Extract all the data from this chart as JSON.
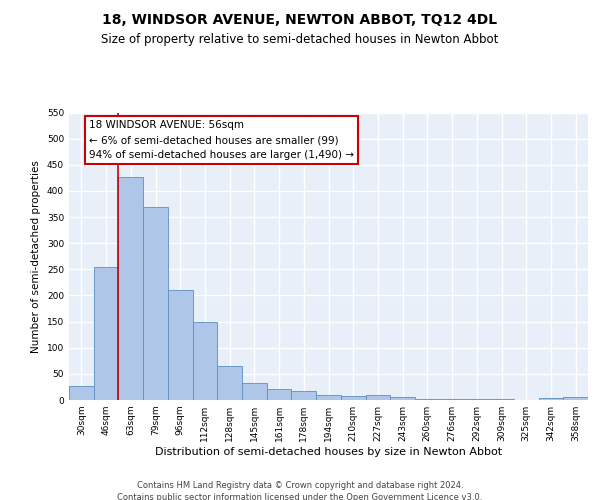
{
  "title": "18, WINDSOR AVENUE, NEWTON ABBOT, TQ12 4DL",
  "subtitle": "Size of property relative to semi-detached houses in Newton Abbot",
  "xlabel": "Distribution of semi-detached houses by size in Newton Abbot",
  "ylabel": "Number of semi-detached properties",
  "categories": [
    "30sqm",
    "46sqm",
    "63sqm",
    "79sqm",
    "96sqm",
    "112sqm",
    "128sqm",
    "145sqm",
    "161sqm",
    "178sqm",
    "194sqm",
    "210sqm",
    "227sqm",
    "243sqm",
    "260sqm",
    "276sqm",
    "292sqm",
    "309sqm",
    "325sqm",
    "342sqm",
    "358sqm"
  ],
  "values": [
    26,
    255,
    427,
    370,
    210,
    150,
    65,
    33,
    22,
    18,
    10,
    8,
    10,
    5,
    2,
    2,
    1,
    1,
    0,
    4,
    5
  ],
  "bar_color": "#aec6e8",
  "bar_edge_color": "#5a8fc2",
  "background_color": "#e8eff8",
  "grid_color": "#ffffff",
  "annotation_box_text": "18 WINDSOR AVENUE: 56sqm\n← 6% of semi-detached houses are smaller (99)\n94% of semi-detached houses are larger (1,490) →",
  "annotation_box_color": "#ffffff",
  "annotation_box_edge_color": "#cc0000",
  "vline_color": "#cc0000",
  "vline_x": 1.5,
  "ylim": [
    0,
    550
  ],
  "yticks": [
    0,
    50,
    100,
    150,
    200,
    250,
    300,
    350,
    400,
    450,
    500,
    550
  ],
  "footer_line1": "Contains HM Land Registry data © Crown copyright and database right 2024.",
  "footer_line2": "Contains public sector information licensed under the Open Government Licence v3.0.",
  "title_fontsize": 10,
  "subtitle_fontsize": 8.5,
  "xlabel_fontsize": 8,
  "ylabel_fontsize": 7.5,
  "tick_fontsize": 6.5,
  "annotation_fontsize": 7.5,
  "footer_fontsize": 6
}
